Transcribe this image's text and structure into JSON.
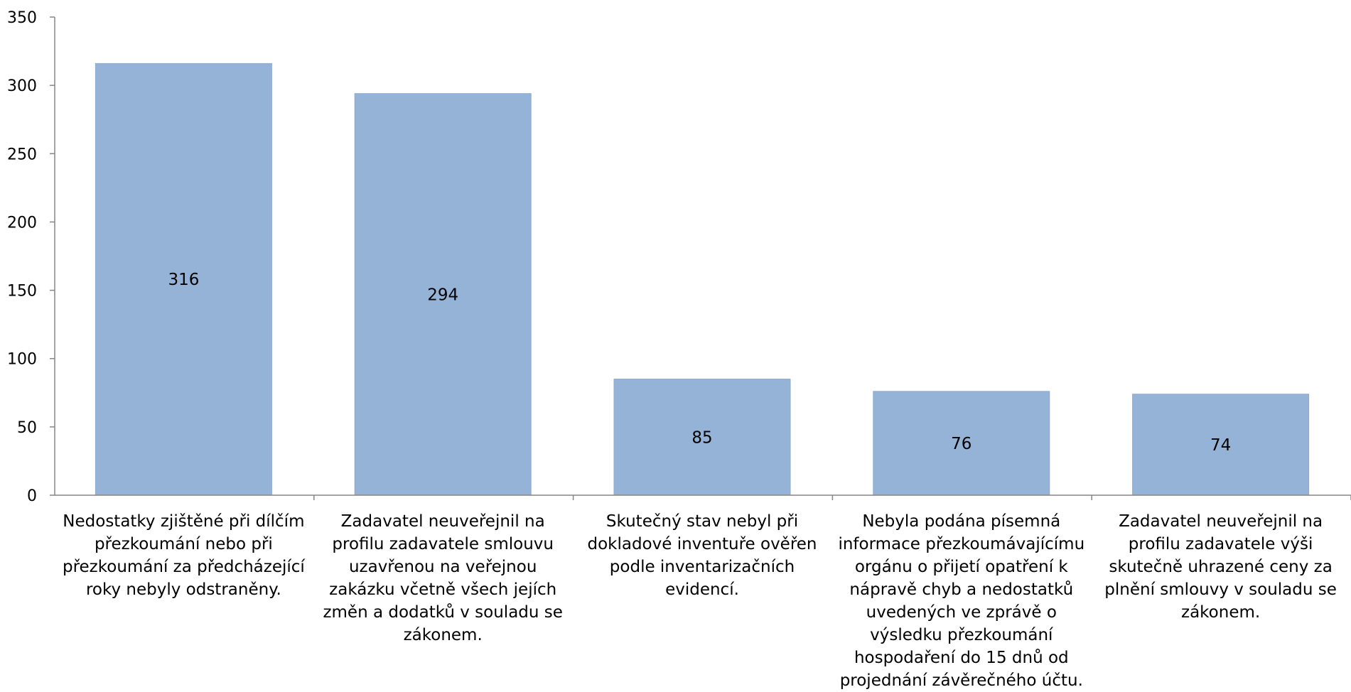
{
  "chart_data": {
    "type": "bar",
    "title": "",
    "xlabel": "",
    "ylabel": "",
    "ylim": [
      0,
      350
    ],
    "yticks": [
      0,
      50,
      100,
      150,
      200,
      250,
      300,
      350
    ],
    "grid": false,
    "legend": "none",
    "bar_color": "#95b3d7",
    "categories": [
      "Nedostatky zjištěné při dílčím přezkoumání nebo při přezkoumání za předcházející roky nebyly odstraněny.",
      "Zadavatel neuveřejnil na profilu zadavatele smlouvu uzavřenou na veřejnou zakázku včetně všech jejích změn a dodatků v souladu se zákonem.",
      "Skutečný stav nebyl při dokladové inventuře ověřen podle inventarizačních evidencí.",
      "Nebyla podána písemná informace přezkoumávajícímu orgánu o přijetí opatření k nápravě chyb a nedostatků uvedených ve zprávě o výsledku přezkoumání hospodaření do 15 dnů od projednání závěrečného účtu.",
      "Zadavatel neuveřejnil na profilu zadavatele výši skutečně uhrazené ceny za plnění smlouvy v souladu se zákonem."
    ],
    "values": [
      316,
      294,
      85,
      76,
      74
    ]
  }
}
